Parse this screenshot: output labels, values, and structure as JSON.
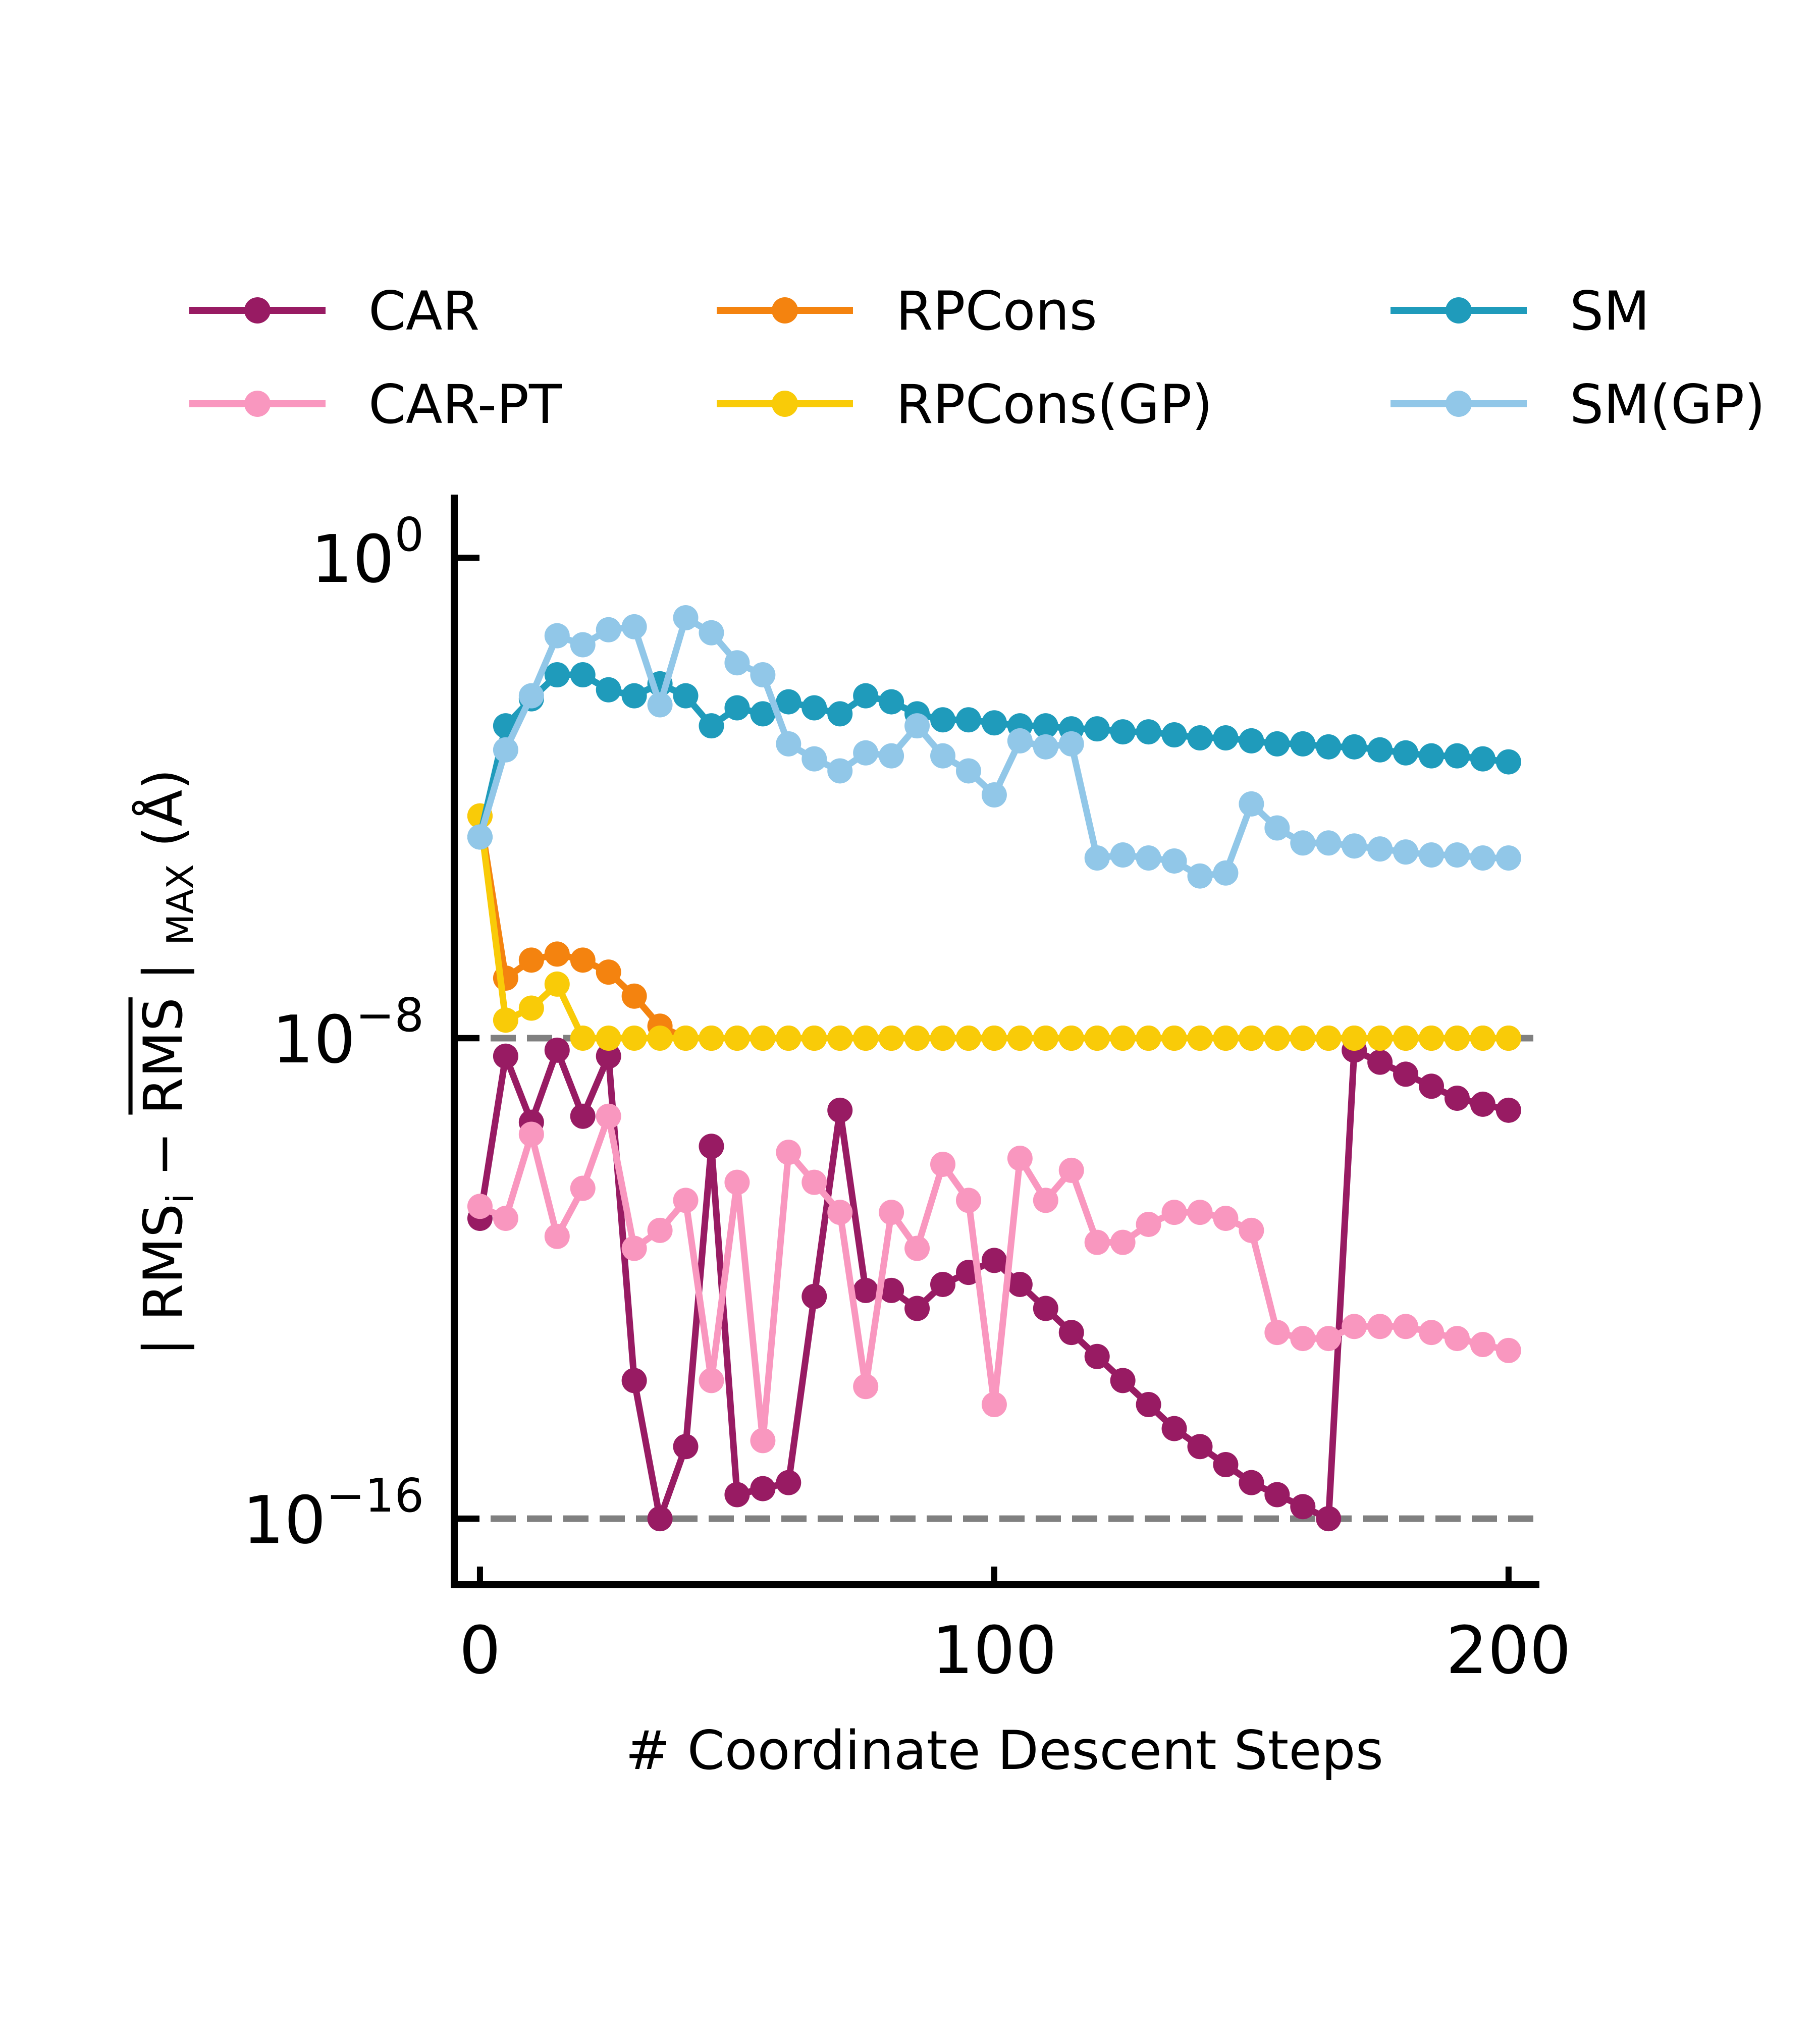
{
  "chart_data": {
    "type": "line",
    "xlabel": "# Coordinate Descent Steps",
    "ylabel": "| RMS_i − RMS̄ |_MAX (Å)",
    "ylabel_parts": {
      "bar_left": "| RMS",
      "sub_i": "i",
      "minus": " − ",
      "rms_bar": "RMS",
      "bar_right": " | ",
      "sub_max": "MAX",
      "unit": " (Å)"
    },
    "xlim": [
      -5,
      206
    ],
    "ylim_log10": [
      -17.1,
      1.05
    ],
    "y_scale": "log",
    "x_ticks": [
      0,
      100,
      200
    ],
    "x_tick_labels": [
      "0",
      "100",
      "200"
    ],
    "y_ticks": [
      1,
      1e-08,
      1e-16
    ],
    "y_tick_labels": [
      {
        "base": "10",
        "exp": "0"
      },
      {
        "base": "10",
        "exp": "−8"
      },
      {
        "base": "10",
        "exp": "−16"
      }
    ],
    "reference_lines": [
      1e-08,
      1e-16
    ],
    "legend_position": "top",
    "x": [
      0,
      5,
      10,
      15,
      20,
      25,
      30,
      35,
      40,
      45,
      50,
      55,
      60,
      65,
      70,
      75,
      80,
      85,
      90,
      95,
      100,
      105,
      110,
      115,
      120,
      125,
      130,
      135,
      140,
      145,
      150,
      155,
      160,
      165,
      170,
      175,
      180,
      185,
      190,
      195,
      200
    ],
    "series": [
      {
        "name": "CAR",
        "color": "#981b63",
        "log10_values": [
          -11.0,
          -8.3,
          -9.4,
          -8.2,
          -9.3,
          -8.3,
          -13.7,
          -16.0,
          -14.8,
          -9.8,
          -15.6,
          -15.5,
          -15.4,
          -12.3,
          -9.2,
          -12.2,
          -12.2,
          -12.5,
          -12.1,
          -11.9,
          -11.7,
          -12.1,
          -12.5,
          -12.9,
          -13.3,
          -13.7,
          -14.1,
          -14.5,
          -14.8,
          -15.1,
          -15.4,
          -15.6,
          -15.8,
          -16.0,
          -8.2,
          -8.4,
          -8.6,
          -8.8,
          -9.0,
          -9.1,
          -9.2
        ],
        "values": [
          1e-11,
          5e-09,
          4e-10,
          6.3e-09,
          5e-10,
          5e-09,
          2e-14,
          1e-16,
          1.6e-15,
          1.6e-10,
          2.5e-16,
          3.2e-16,
          4e-16,
          5e-13,
          6.3e-10,
          6.3e-13,
          6.3e-13,
          3.2e-13,
          7.9e-13,
          1.3e-12,
          2e-12,
          7.9e-13,
          3.2e-13,
          1.3e-13,
          5e-14,
          2e-14,
          7.9e-15,
          3.2e-15,
          1.6e-15,
          7.9e-16,
          4e-16,
          2.5e-16,
          1.6e-16,
          1e-16,
          6.3e-09,
          4e-09,
          2.5e-09,
          1.6e-09,
          1e-09,
          7.9e-10,
          6.3e-10
        ]
      },
      {
        "name": "CAR-PT",
        "color": "#f997bf",
        "log10_values": [
          -10.8,
          -11.0,
          -9.6,
          -11.3,
          -10.5,
          -9.3,
          -11.5,
          -11.2,
          -10.7,
          -13.7,
          -10.4,
          -14.7,
          -9.9,
          -10.4,
          -10.9,
          -13.8,
          -10.9,
          -11.5,
          -10.1,
          -10.7,
          -14.1,
          -10.0,
          -10.7,
          -10.2,
          -11.4,
          -11.4,
          -11.1,
          -10.9,
          -10.9,
          -11.0,
          -11.2,
          -12.9,
          -13.0,
          -13.0,
          -12.8,
          -12.8,
          -12.8,
          -12.9,
          -13.0,
          -13.1,
          -13.2
        ],
        "values": [
          1.6e-11,
          1e-11,
          2.5e-10,
          5e-12,
          3.2e-11,
          5e-10,
          3.2e-12,
          6.3e-12,
          2e-11,
          2e-14,
          4e-11,
          2e-15,
          1.3e-10,
          4e-11,
          1.3e-11,
          1.6e-14,
          1.3e-11,
          3.2e-12,
          7.9e-11,
          2e-11,
          7.9e-15,
          1e-10,
          2e-11,
          6.3e-11,
          4e-12,
          4e-12,
          7.9e-12,
          1.3e-11,
          1.3e-11,
          1e-11,
          6.3e-12,
          1.3e-13,
          1e-13,
          1e-13,
          1.6e-13,
          1.6e-13,
          1.6e-13,
          1.3e-13,
          1e-13,
          7.9e-14,
          6.3e-14
        ]
      },
      {
        "name": "RPCons",
        "color": "#f4830f",
        "log10_values": [
          -4.3,
          -7.0,
          -6.7,
          -6.6,
          -6.7,
          -6.9,
          -7.3,
          -7.8,
          -8.0,
          -8.0,
          -8.0,
          -8.0,
          -8.0,
          -8.0,
          -8.0,
          -8.0,
          -8.0,
          -8.0,
          -8.0,
          -8.0,
          -8.0,
          -8.0,
          -8.0,
          -8.0,
          -8.0,
          -8.0,
          -8.0,
          -8.0,
          -8.0,
          -8.0,
          -8.0,
          -8.0,
          -8.0,
          -8.0,
          -8.0,
          -8.0,
          -8.0,
          -8.0,
          -8.0,
          -8.0,
          -8.0
        ],
        "values": [
          5e-05,
          1e-07,
          2e-07,
          2.5e-07,
          2e-07,
          1.3e-07,
          5e-08,
          1.6e-08,
          1e-08,
          1e-08,
          1e-08,
          1e-08,
          1e-08,
          1e-08,
          1e-08,
          1e-08,
          1e-08,
          1e-08,
          1e-08,
          1e-08,
          1e-08,
          1e-08,
          1e-08,
          1e-08,
          1e-08,
          1e-08,
          1e-08,
          1e-08,
          1e-08,
          1e-08,
          1e-08,
          1e-08,
          1e-08,
          1e-08,
          1e-08,
          1e-08,
          1e-08,
          1e-08,
          1e-08,
          1e-08,
          1e-08
        ]
      },
      {
        "name": "RPCons(GP)",
        "color": "#f9cb08",
        "log10_values": [
          -4.3,
          -7.7,
          -7.5,
          -7.1,
          -8.0,
          -8.0,
          -8.0,
          -8.0,
          -8.0,
          -8.0,
          -8.0,
          -8.0,
          -8.0,
          -8.0,
          -8.0,
          -8.0,
          -8.0,
          -8.0,
          -8.0,
          -8.0,
          -8.0,
          -8.0,
          -8.0,
          -8.0,
          -8.0,
          -8.0,
          -8.0,
          -8.0,
          -8.0,
          -8.0,
          -8.0,
          -8.0,
          -8.0,
          -8.0,
          -8.0,
          -8.0,
          -8.0,
          -8.0,
          -8.0,
          -8.0,
          -8.0
        ],
        "values": [
          5e-05,
          2e-08,
          3.2e-08,
          7.9e-08,
          1e-08,
          1e-08,
          1e-08,
          1e-08,
          1e-08,
          1e-08,
          1e-08,
          1e-08,
          1e-08,
          1e-08,
          1e-08,
          1e-08,
          1e-08,
          1e-08,
          1e-08,
          1e-08,
          1e-08,
          1e-08,
          1e-08,
          1e-08,
          1e-08,
          1e-08,
          1e-08,
          1e-08,
          1e-08,
          1e-08,
          1e-08,
          1e-08,
          1e-08,
          1e-08,
          1e-08,
          1e-08,
          1e-08,
          1e-08,
          1e-08,
          1e-08,
          1e-08
        ]
      },
      {
        "name": "SM",
        "color": "#1f9bbb",
        "log10_values": [
          -4.65,
          -2.8,
          -2.35,
          -1.95,
          -1.95,
          -2.2,
          -2.3,
          -2.1,
          -2.3,
          -2.8,
          -2.5,
          -2.6,
          -2.4,
          -2.5,
          -2.6,
          -2.3,
          -2.4,
          -2.6,
          -2.7,
          -2.7,
          -2.75,
          -2.8,
          -2.8,
          -2.85,
          -2.85,
          -2.9,
          -2.9,
          -2.95,
          -3.0,
          -3.0,
          -3.05,
          -3.1,
          -3.1,
          -3.15,
          -3.15,
          -3.2,
          -3.25,
          -3.3,
          -3.3,
          -3.35,
          -3.4
        ],
        "values": [
          2.2e-05,
          0.0016,
          0.0045,
          0.011,
          0.011,
          0.0063,
          0.005,
          0.0079,
          0.005,
          0.0016,
          0.0032,
          0.0025,
          0.004,
          0.0032,
          0.0025,
          0.005,
          0.004,
          0.0025,
          0.002,
          0.002,
          0.0018,
          0.0016,
          0.0016,
          0.0014,
          0.0014,
          0.0013,
          0.0013,
          0.0011,
          0.001,
          0.001,
          0.00089,
          0.00079,
          0.00079,
          0.00071,
          0.00071,
          0.00063,
          0.00056,
          0.0005,
          0.0005,
          0.00045,
          0.0004
        ]
      },
      {
        "name": "SM(GP)",
        "color": "#91c7e8",
        "log10_values": [
          -4.65,
          -3.2,
          -2.3,
          -1.3,
          -1.45,
          -1.2,
          -1.15,
          -2.45,
          -1.0,
          -1.25,
          -1.75,
          -1.95,
          -3.1,
          -3.35,
          -3.55,
          -3.25,
          -3.3,
          -2.8,
          -3.3,
          -3.55,
          -3.95,
          -3.05,
          -3.15,
          -3.1,
          -5.0,
          -4.95,
          -5.0,
          -5.05,
          -5.3,
          -5.25,
          -4.1,
          -4.5,
          -4.75,
          -4.75,
          -4.8,
          -4.85,
          -4.9,
          -4.95,
          -4.95,
          -5.0,
          -5.0
        ],
        "values": [
          2.2e-05,
          0.00063,
          0.005,
          0.05,
          0.035,
          0.063,
          0.071,
          0.0035,
          0.1,
          0.056,
          0.018,
          0.011,
          0.00079,
          0.00045,
          0.00028,
          0.00056,
          0.0005,
          0.0016,
          0.0005,
          0.00028,
          0.00011,
          0.00089,
          0.00071,
          0.00079,
          1e-05,
          1.1e-05,
          1e-05,
          8.9e-06,
          5e-06,
          5.6e-06,
          7.9e-05,
          3.2e-05,
          1.8e-05,
          1.8e-05,
          1.6e-05,
          1.4e-05,
          1.3e-05,
          1.1e-05,
          1.1e-05,
          1e-05,
          1e-05
        ]
      }
    ]
  }
}
